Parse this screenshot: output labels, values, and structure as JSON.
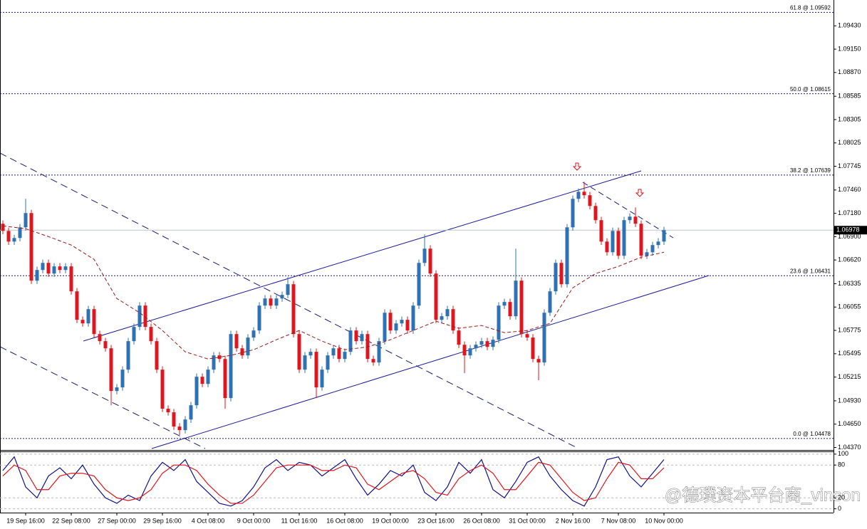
{
  "chart_data": [
    {
      "type": "candlestick",
      "categories": [
        null,
        null,
        null,
        null,
        "19 Sep 16:00",
        null,
        null,
        null,
        null,
        null,
        null,
        null,
        "22 Sep 08:00",
        null,
        null,
        null,
        null,
        null,
        null,
        null,
        "27 Sep 00:00",
        null,
        null,
        null,
        null,
        null,
        null,
        null,
        "29 Sep 16:00",
        null,
        null,
        null,
        null,
        null,
        null,
        null,
        "4 Oct 08:00",
        null,
        null,
        null,
        null,
        null,
        null,
        null,
        "9 Oct 00:00",
        null,
        null,
        null,
        null,
        null,
        null,
        null,
        "11 Oct 16:00",
        null,
        null,
        null,
        null,
        null,
        null,
        null,
        "16 Oct 08:00",
        null,
        null,
        null,
        null,
        null,
        null,
        null,
        "19 Oct 00:00",
        null,
        null,
        null,
        null,
        null,
        null,
        null,
        "23 Oct 16:00",
        null,
        null,
        null,
        null,
        null,
        null,
        null,
        "26 Oct 08:00",
        null,
        null,
        null,
        null,
        null,
        null,
        null,
        "31 Oct 00:00",
        null,
        null,
        null,
        null,
        null,
        null,
        null,
        "2 Nov 16:00",
        null,
        null,
        null,
        null,
        null,
        null,
        null,
        "7 Nov 08:00",
        null,
        null,
        null,
        null,
        null,
        null,
        null,
        "10 Nov 00:00"
      ],
      "open": [
        1.07055,
        1.06969,
        1.06841,
        1.06884,
        1.07012,
        1.07183,
        1.06372,
        1.065,
        1.06585,
        1.06457,
        1.06543,
        1.065,
        1.06543,
        1.06244,
        1.05902,
        1.05859,
        1.0603,
        1.05731,
        1.05646,
        1.0556,
        1.05048,
        1.05091,
        1.05304,
        1.05646,
        1.05817,
        1.06073,
        1.05817,
        1.05646,
        1.05304,
        1.04835,
        1.04792,
        1.04621,
        1.04578,
        1.04706,
        1.04877,
        1.05219,
        1.05133,
        1.05304,
        1.05475,
        1.05432,
        1.04963,
        1.05731,
        1.0556,
        1.05475,
        1.05689,
        1.05774,
        1.06073,
        1.06158,
        1.06073,
        1.06158,
        1.06201,
        1.06329,
        1.05731,
        1.05304,
        1.05475,
        1.05518,
        1.05091,
        1.05304,
        1.05475,
        1.0556,
        1.05432,
        1.05518,
        1.05774,
        1.05646,
        1.05731,
        1.05432,
        1.0539,
        1.05646,
        1.05987,
        1.05774,
        1.05859,
        1.05902,
        1.05774,
        1.06073,
        1.06585,
        1.06756,
        1.06457,
        1.05902,
        1.05945,
        1.0603,
        1.05774,
        1.05603,
        1.05475,
        1.0556,
        1.05603,
        1.05646,
        1.05577,
        1.05663,
        1.06073,
        1.06116,
        1.05945,
        1.06372,
        1.05731,
        1.05689,
        1.05432,
        1.0539,
        1.05987,
        1.06244,
        1.06585,
        1.06329,
        1.07012,
        1.07354,
        1.07439,
        1.07397,
        1.07268,
        1.07098,
        1.06841,
        1.06713,
        1.06969,
        1.06671,
        1.07098,
        1.0714,
        1.07055,
        1.06671,
        1.06713,
        1.06799,
        1.06841
      ],
      "high": [
        1.07095,
        1.07009,
        1.06924,
        1.07052,
        1.07354,
        1.07223,
        1.0654,
        1.06625,
        1.06625,
        1.06583,
        1.06583,
        1.06583,
        1.06583,
        1.06284,
        1.05942,
        1.0607,
        1.0607,
        1.05771,
        1.05686,
        1.056,
        1.05131,
        1.05344,
        1.05686,
        1.05857,
        1.06113,
        1.06113,
        1.05857,
        1.05686,
        1.05344,
        1.04875,
        1.04832,
        1.04661,
        1.04746,
        1.04917,
        1.05259,
        1.05259,
        1.05344,
        1.05515,
        1.05515,
        1.05472,
        1.05771,
        1.05771,
        1.056,
        1.05729,
        1.05814,
        1.06113,
        1.06198,
        1.06198,
        1.06198,
        1.06241,
        1.06414,
        1.06369,
        1.05771,
        1.05515,
        1.05558,
        1.05558,
        1.05344,
        1.05515,
        1.056,
        1.056,
        1.05558,
        1.05814,
        1.05814,
        1.05771,
        1.05771,
        1.05472,
        1.05686,
        1.06027,
        1.06027,
        1.05899,
        1.05942,
        1.05942,
        1.06113,
        1.06625,
        1.06927,
        1.06796,
        1.06497,
        1.05985,
        1.0607,
        1.0607,
        1.05814,
        1.05643,
        1.056,
        1.05643,
        1.05686,
        1.05686,
        1.05703,
        1.06113,
        1.06156,
        1.06156,
        1.06756,
        1.06412,
        1.05771,
        1.05729,
        1.05472,
        1.06027,
        1.06284,
        1.06625,
        1.06625,
        1.07052,
        1.07394,
        1.07479,
        1.07559,
        1.07437,
        1.07308,
        1.07138,
        1.06881,
        1.07009,
        1.07009,
        1.07138,
        1.0718,
        1.07251,
        1.07095,
        1.06753,
        1.06839,
        1.06881,
        1.07018
      ],
      "low": [
        1.06929,
        1.06801,
        1.06801,
        1.06844,
        1.06972,
        1.06332,
        1.06332,
        1.0646,
        1.06417,
        1.06417,
        1.0646,
        1.0646,
        1.06204,
        1.05862,
        1.05819,
        1.05819,
        1.05691,
        1.05606,
        1.0552,
        1.04877,
        1.05008,
        1.05051,
        1.05264,
        1.05606,
        1.05777,
        1.05777,
        1.05606,
        1.05264,
        1.04795,
        1.04752,
        1.04581,
        1.04519,
        1.04538,
        1.04666,
        1.04837,
        1.05093,
        1.05093,
        1.05264,
        1.05392,
        1.04835,
        1.04923,
        1.0552,
        1.05435,
        1.05435,
        1.05649,
        1.05734,
        1.06033,
        1.06033,
        1.06033,
        1.06118,
        1.06161,
        1.05691,
        1.05264,
        1.05264,
        1.05435,
        1.04963,
        1.05051,
        1.05264,
        1.05435,
        1.05392,
        1.05392,
        1.05478,
        1.05606,
        1.05606,
        1.05392,
        1.0535,
        1.0535,
        1.05606,
        1.05734,
        1.05734,
        1.05819,
        1.05734,
        1.05734,
        1.06033,
        1.06545,
        1.06417,
        1.05862,
        1.05862,
        1.05905,
        1.05734,
        1.05563,
        1.05262,
        1.05435,
        1.0552,
        1.05563,
        1.05537,
        1.05537,
        1.05623,
        1.06033,
        1.05905,
        1.05905,
        1.05691,
        1.05649,
        1.05392,
        1.05176,
        1.0535,
        1.05947,
        1.06204,
        1.06289,
        1.06289,
        1.06972,
        1.07314,
        1.07357,
        1.07228,
        1.07058,
        1.06801,
        1.06673,
        1.06673,
        1.06631,
        1.06631,
        1.07058,
        1.07015,
        1.06631,
        1.06631,
        1.06673,
        1.06759,
        1.06801
      ],
      "close": [
        1.06969,
        1.06841,
        1.06884,
        1.07012,
        1.07183,
        1.06372,
        1.065,
        1.06585,
        1.06457,
        1.06543,
        1.065,
        1.06543,
        1.06244,
        1.05902,
        1.05859,
        1.0603,
        1.05731,
        1.05646,
        1.0556,
        1.05048,
        1.05091,
        1.05304,
        1.05646,
        1.05817,
        1.06073,
        1.05817,
        1.05646,
        1.05304,
        1.04835,
        1.04792,
        1.04621,
        1.04578,
        1.04706,
        1.04877,
        1.05219,
        1.05133,
        1.05304,
        1.05475,
        1.05432,
        1.04963,
        1.05731,
        1.0556,
        1.05475,
        1.05689,
        1.05774,
        1.06073,
        1.06158,
        1.06073,
        1.06158,
        1.06201,
        1.06329,
        1.05731,
        1.05304,
        1.05475,
        1.05518,
        1.05091,
        1.05304,
        1.05475,
        1.0556,
        1.05432,
        1.05518,
        1.05774,
        1.05646,
        1.05731,
        1.05432,
        1.0539,
        1.05646,
        1.05987,
        1.05774,
        1.05859,
        1.05902,
        1.05774,
        1.06073,
        1.06585,
        1.06756,
        1.06457,
        1.05902,
        1.05945,
        1.0603,
        1.05774,
        1.05603,
        1.05475,
        1.0556,
        1.05603,
        1.05646,
        1.05577,
        1.05663,
        1.06073,
        1.06116,
        1.05945,
        1.06372,
        1.05731,
        1.05689,
        1.05432,
        1.0539,
        1.05987,
        1.06244,
        1.06585,
        1.06329,
        1.07012,
        1.07354,
        1.07439,
        1.07397,
        1.07268,
        1.07098,
        1.06841,
        1.06713,
        1.06969,
        1.06671,
        1.07098,
        1.0714,
        1.07055,
        1.06671,
        1.06713,
        1.06799,
        1.06841,
        1.06978
      ],
      "colors": {
        "up": "#2f72b3",
        "down": "#e0161e"
      },
      "ylim": [
        1.0434,
        1.0974
      ],
      "yticks": [
        {
          "value": 1.0943,
          "label": "1.09430"
        },
        {
          "value": 1.0915,
          "label": "1.09150"
        },
        {
          "value": 1.0887,
          "label": "1.08870"
        },
        1.08585,
        1.08305,
        1.08025,
        1.07745,
        {
          "value": 1.0746,
          "label": "1.07460"
        },
        {
          "value": 1.0718,
          "label": "1.07180"
        },
        {
          "value": 1.069,
          "label": "1.06900"
        },
        {
          "value": 1.0662,
          "label": "1.06620"
        },
        1.06335,
        1.06055,
        1.05775,
        1.05495,
        1.05215,
        {
          "value": 1.0493,
          "label": "1.04930"
        },
        {
          "value": 1.0465,
          "label": "1.04650"
        },
        {
          "value": 1.0437,
          "label": "1.04370"
        }
      ],
      "levels": [
        {
          "value": 1.09592,
          "label": "61.8 @ 1.09592"
        },
        {
          "value": 1.08615,
          "label": "50.0 @ 1.08615"
        },
        {
          "value": 1.07639,
          "label": "38.2 @ 1.07639"
        },
        {
          "value": 1.06431,
          "label": "23.6 @ 1.06431"
        },
        {
          "value": 1.04478,
          "label": "0.0 @ 1.04478"
        }
      ],
      "current_price": 1.06978,
      "moving_average": {
        "color": "#9b1b1b",
        "values": [
          1.07029,
          1.06995,
          1.06901,
          1.06799,
          1.06628,
          1.06158,
          1.05987,
          1.05774,
          1.05518,
          1.05432,
          1.05475,
          1.05543,
          1.05663,
          1.05774,
          1.05646,
          1.05543,
          1.05577,
          1.05663,
          1.05774,
          1.05885,
          1.058,
          1.05834,
          1.05748,
          1.05774,
          1.05859,
          1.06286,
          1.06457,
          1.06543,
          1.06653,
          1.06713
        ]
      },
      "watermark": "@德璞资本平台商_vinson"
    },
    {
      "type": "line",
      "series": [
        {
          "color": "#10108a",
          "values": [
            70,
            95,
            40,
            20,
            60,
            75,
            55,
            80,
            45,
            20,
            10,
            25,
            15,
            60,
            85,
            70,
            90,
            50,
            30,
            10,
            5,
            15,
            40,
            75,
            90,
            70,
            85,
            80,
            60,
            75,
            90,
            55,
            25,
            45,
            70,
            60,
            80,
            30,
            15,
            40,
            85,
            65,
            90,
            35,
            20,
            50,
            85,
            95,
            60,
            35,
            15,
            5,
            40,
            90,
            95,
            60,
            40,
            65,
            90
          ]
        },
        {
          "color": "#e0161e",
          "values": [
            60,
            80,
            70,
            35,
            35,
            60,
            65,
            65,
            60,
            35,
            20,
            15,
            20,
            35,
            65,
            80,
            80,
            70,
            45,
            25,
            10,
            10,
            25,
            50,
            75,
            80,
            80,
            80,
            70,
            70,
            80,
            75,
            45,
            35,
            50,
            65,
            70,
            55,
            30,
            25,
            55,
            70,
            80,
            65,
            35,
            35,
            60,
            85,
            80,
            55,
            30,
            15,
            20,
            55,
            85,
            80,
            55,
            55,
            75
          ]
        }
      ],
      "ylim": [
        -7,
        105
      ],
      "yticks": [
        0,
        20,
        80,
        100
      ],
      "grid": true
    }
  ]
}
